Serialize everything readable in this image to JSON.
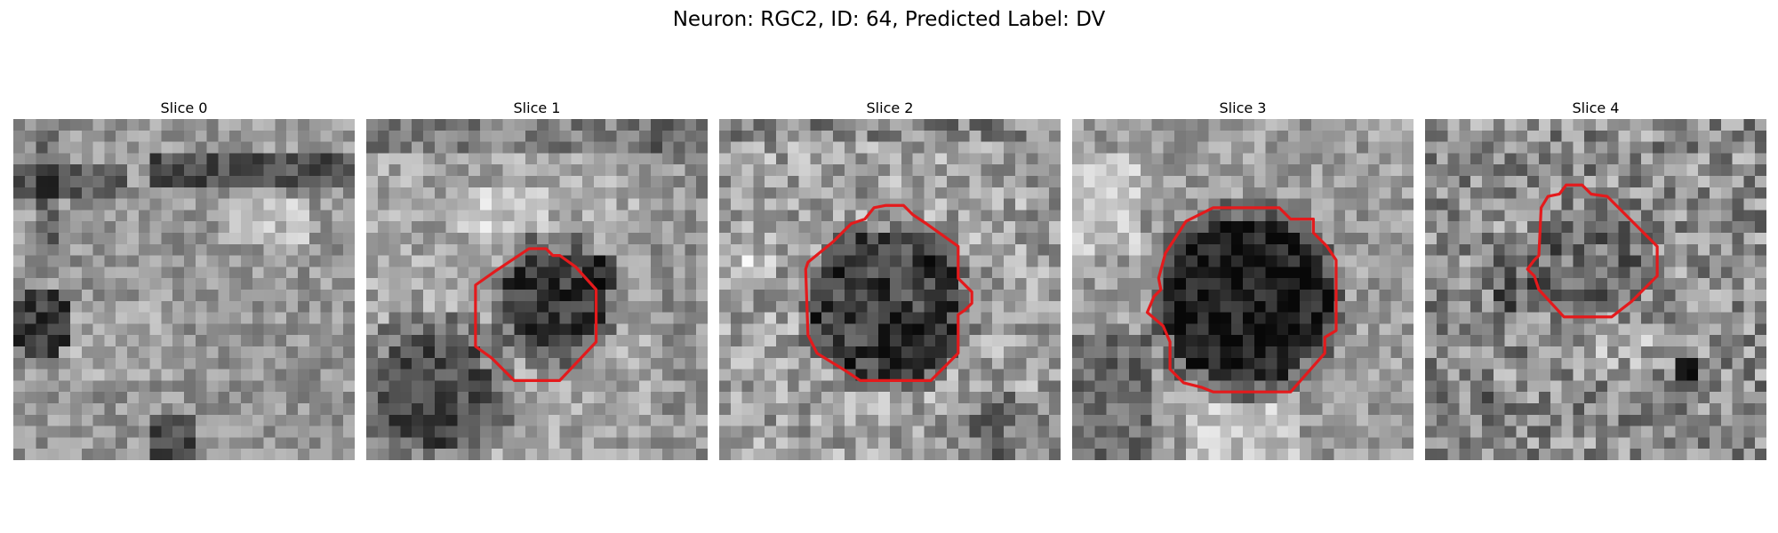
{
  "figure": {
    "title": "Neuron: RGC2, ID: 64, Predicted Label: DV"
  },
  "panels": [
    {
      "title": "Slice 0",
      "has_contour": false
    },
    {
      "title": "Slice 1",
      "has_contour": true
    },
    {
      "title": "Slice 2",
      "has_contour": true
    },
    {
      "title": "Slice 3",
      "has_contour": true
    },
    {
      "title": "Slice 4",
      "has_contour": true
    }
  ],
  "colors": {
    "contour": "#e41a1c",
    "background": "#ffffff"
  }
}
